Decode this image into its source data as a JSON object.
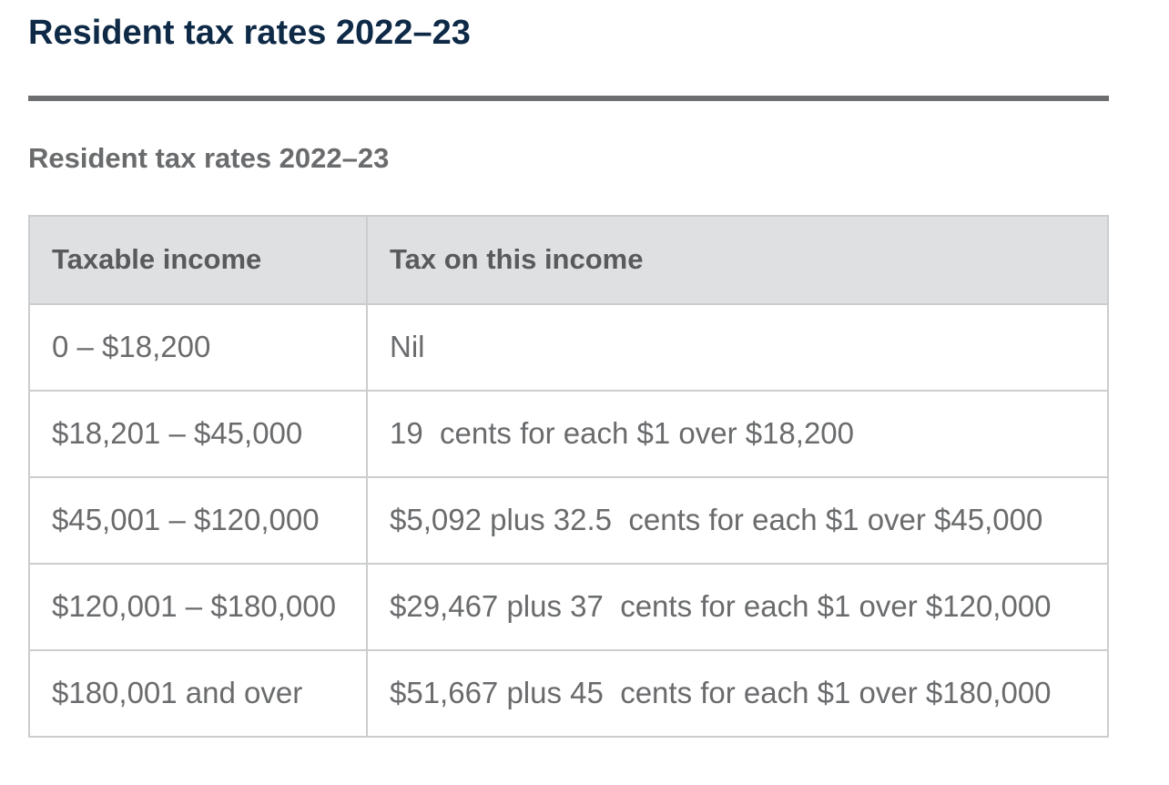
{
  "page": {
    "title": "Resident tax rates 2022–23"
  },
  "section": {
    "heading": "Resident tax rates 2022–23"
  },
  "table": {
    "columns": [
      "Taxable income",
      "Tax on this income"
    ],
    "rows": [
      {
        "income": "0 – $18,200",
        "tax": "Nil"
      },
      {
        "income": "$18,201 – $45,000",
        "tax": "19  cents for each $1 over $18,200"
      },
      {
        "income": "$45,001 – $120,000",
        "tax": "$5,092 plus 32.5  cents for each $1 over $45,000"
      },
      {
        "income": "$120,001 – $180,000",
        "tax": "$29,467 plus 37  cents for each $1 over $120,000"
      },
      {
        "income": "$180,001 and over",
        "tax": "$51,667 plus 45  cents for each $1 over $180,000"
      }
    ]
  },
  "colors": {
    "title_navy": "#0e2a47",
    "divider_gray": "#6d6e70",
    "header_background": "#dee0e1",
    "header_text": "#595a5c",
    "body_text": "#6a6b6d",
    "table_border": "#cbcdce"
  }
}
